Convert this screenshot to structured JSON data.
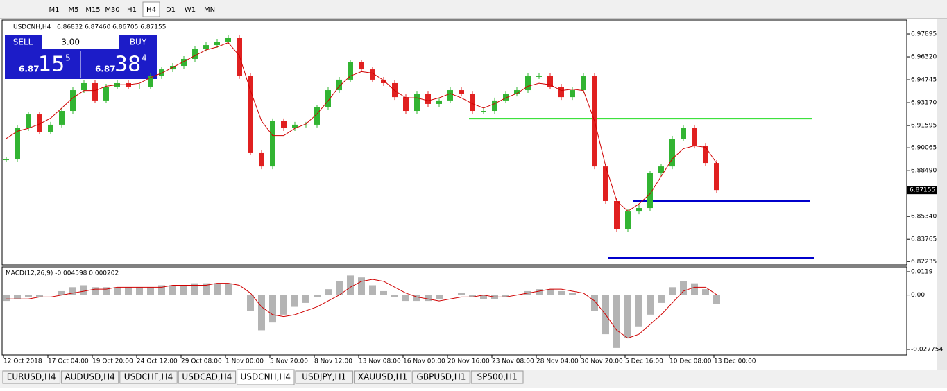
{
  "toolbar": {
    "timeframes": [
      "M1",
      "M5",
      "M15",
      "M30",
      "H1",
      "H4",
      "D1",
      "W1",
      "MN"
    ],
    "active": "H4"
  },
  "trade_panel": {
    "sell": "SELL",
    "buy": "BUY",
    "lots": "3.00",
    "bid": [
      "6.87",
      "15",
      "5"
    ],
    "ask": [
      "6.87",
      "38",
      "4"
    ]
  },
  "chart_data": [
    {
      "type": "candlestick",
      "title": "USDCNH,H4",
      "quote": "6.86832 6.87460 6.86705 6.87155",
      "up_color": "#32b432",
      "down_color": "#e02020",
      "ma_color": "#d00000",
      "series": [
        {
          "name": "close",
          "values": [
            6.8926,
            6.9141,
            6.9236,
            6.9117,
            6.9165,
            6.926,
            6.9403,
            6.9451,
            6.9332,
            6.9427,
            6.9451,
            6.9427,
            6.9427,
            6.9499,
            6.9546,
            6.957,
            6.9618,
            6.9689,
            6.9713,
            6.9737,
            6.9761,
            6.9499,
            6.8974,
            6.8878,
            6.9189,
            6.9141,
            6.9165,
            6.9165,
            6.9284,
            6.9403,
            6.9475,
            6.9594,
            6.9546,
            6.9475,
            6.9451,
            6.9355,
            6.926,
            6.9379,
            6.9308,
            6.9332,
            6.9403,
            6.9379,
            6.926,
            6.926,
            6.9332,
            6.9379,
            6.9403,
            6.9499,
            6.9499,
            6.9427,
            6.9355,
            6.9403,
            6.9499,
            6.8878,
            6.864,
            6.8449,
            6.8568,
            6.8592,
            6.8831,
            6.8878,
            6.9069,
            6.9141,
            6.9021,
            6.8902,
            6.87155
          ]
        },
        {
          "name": "ma",
          "values": [
            6.907,
            6.912,
            6.914,
            6.917,
            6.921,
            6.928,
            6.935,
            6.94,
            6.94,
            6.943,
            6.944,
            6.944,
            6.945,
            6.949,
            6.952,
            6.956,
            6.96,
            6.964,
            6.968,
            6.97,
            6.973,
            6.964,
            6.94,
            6.919,
            6.909,
            6.909,
            6.914,
            6.917,
            6.924,
            6.933,
            6.943,
            6.95,
            6.953,
            6.952,
            6.947,
            6.94,
            6.935,
            6.935,
            6.933,
            6.935,
            6.938,
            6.935,
            6.931,
            6.928,
            6.931,
            6.935,
            6.938,
            6.943,
            6.945,
            6.944,
            6.94,
            6.941,
            6.94,
            6.919,
            6.888,
            6.864,
            6.857,
            6.862,
            6.869,
            6.881,
            6.893,
            6.9,
            6.902,
            6.901,
            6.89
          ]
        }
      ],
      "levels": [
        {
          "value": 6.9207,
          "color": "#22dd22"
        },
        {
          "value": 6.864,
          "color": "#0000cc"
        },
        {
          "value": 6.8249,
          "color": "#0000cc"
        }
      ],
      "ylim": [
        6.8201,
        6.9885
      ],
      "yticks": [
        6.97895,
        {
          "value": 6.9632,
          "label": "6.96320"
        },
        6.94745,
        {
          "value": 6.9317,
          "label": "6.93170"
        },
        6.91595,
        6.90065,
        {
          "value": 6.8849,
          "label": "6.88490"
        },
        {
          "value": 6.8534,
          "label": "6.85340"
        },
        6.83765,
        6.82235
      ]
    },
    {
      "type": "macd",
      "title": "MACD(12,26,9) -0.004598 0.000202",
      "hist_color": "#b4b4b4",
      "signal_color": "#d00000",
      "series": [
        {
          "name": "macd",
          "values": [
            -0.003,
            -0.002,
            -0.001,
            -0.001,
            0,
            0.002,
            0.004,
            0.005,
            0.004,
            0.004,
            0.004,
            0.004,
            0.004,
            0.004,
            0.005,
            0.005,
            0.005,
            0.006,
            0.006,
            0.006,
            0.006,
            0,
            -0.008,
            -0.018,
            -0.014,
            -0.01,
            -0.006,
            -0.004,
            -0.001,
            0.003,
            0.007,
            0.01,
            0.009,
            0.005,
            0.002,
            -0.001,
            -0.003,
            -0.003,
            -0.003,
            -0.002,
            0,
            0.001,
            -0.001,
            -0.002,
            -0.002,
            -0.001,
            0,
            0.002,
            0.003,
            0.003,
            0.002,
            0.001,
            0,
            -0.008,
            -0.02,
            -0.027,
            -0.022,
            -0.016,
            -0.01,
            -0.004,
            0.004,
            0.007,
            0.006,
            0.003,
            -0.004598
          ]
        },
        {
          "name": "signal",
          "values": [
            -0.002,
            -0.002,
            -0.002,
            -0.001,
            -0.001,
            0,
            0.001,
            0.002,
            0.003,
            0.003,
            0.004,
            0.004,
            0.004,
            0.004,
            0.004,
            0.005,
            0.005,
            0.005,
            0.005,
            0.006,
            0.006,
            0.005,
            0.001,
            -0.006,
            -0.01,
            -0.011,
            -0.01,
            -0.008,
            -0.006,
            -0.003,
            0,
            0.004,
            0.007,
            0.008,
            0.007,
            0.004,
            0.001,
            -0.001,
            -0.002,
            -0.003,
            -0.002,
            -0.001,
            -0.001,
            0,
            -0.001,
            -0.001,
            0,
            0.001,
            0.002,
            0.003,
            0.003,
            0.002,
            0.001,
            -0.003,
            -0.01,
            -0.018,
            -0.022,
            -0.02,
            -0.015,
            -0.01,
            -0.004,
            0.002,
            0.004,
            0.004,
            0.000202
          ]
        }
      ],
      "ylim": [
        -0.03059,
        0.01438
      ],
      "yticks": [
        0.0119,
        {
          "value": 0,
          "label": "0.00"
        },
        -0.027754
      ]
    }
  ],
  "time_axis": [
    "12 Oct 2018",
    "17 Oct 04:00",
    "19 Oct 20:00",
    "24 Oct 12:00",
    "29 Oct 08:00",
    "1 Nov 00:00",
    "5 Nov 20:00",
    "8 Nov 12:00",
    "13 Nov 08:00",
    "16 Nov 00:00",
    "20 Nov 16:00",
    "23 Nov 08:00",
    "28 Nov 04:00",
    "30 Nov 20:00",
    "5 Dec 16:00",
    "10 Dec 08:00",
    "13 Dec 00:00"
  ],
  "tabs": {
    "items": [
      "EURUSD,H4",
      "AUDUSD,H4",
      "USDCHF,H4",
      "USDCAD,H4",
      "USDCNH,H4",
      "USDJPY,H1",
      "XAUUSD,H1",
      "GBPUSD,H1",
      "SP500,H1"
    ],
    "active": "USDCNH,H4"
  }
}
